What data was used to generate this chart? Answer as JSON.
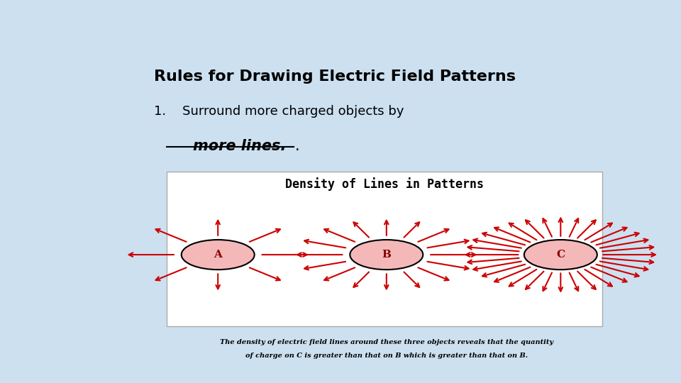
{
  "title": "Rules for Drawing Electric Field Patterns",
  "bg_color": "#cce0f0",
  "item1_text1": "1.    Surround more charged objects by",
  "item1_answer": "    more lines.",
  "box_bg": "#ffffff",
  "box_title": "Density of Lines in Patterns",
  "caption_line1": "The density of electric field lines around these three objects reveals that the quantity",
  "caption_line2": "of charge on C is greater than that on B which is greater than that on B.",
  "arrow_color": "#cc0000",
  "ellipse_fill": "#f4b8b8",
  "ellipse_edge": "#000000",
  "label_A": "A",
  "label_B": "B",
  "label_C": "C",
  "n_arrows_A": 8,
  "n_arrows_B": 16,
  "n_arrows_C": 32
}
